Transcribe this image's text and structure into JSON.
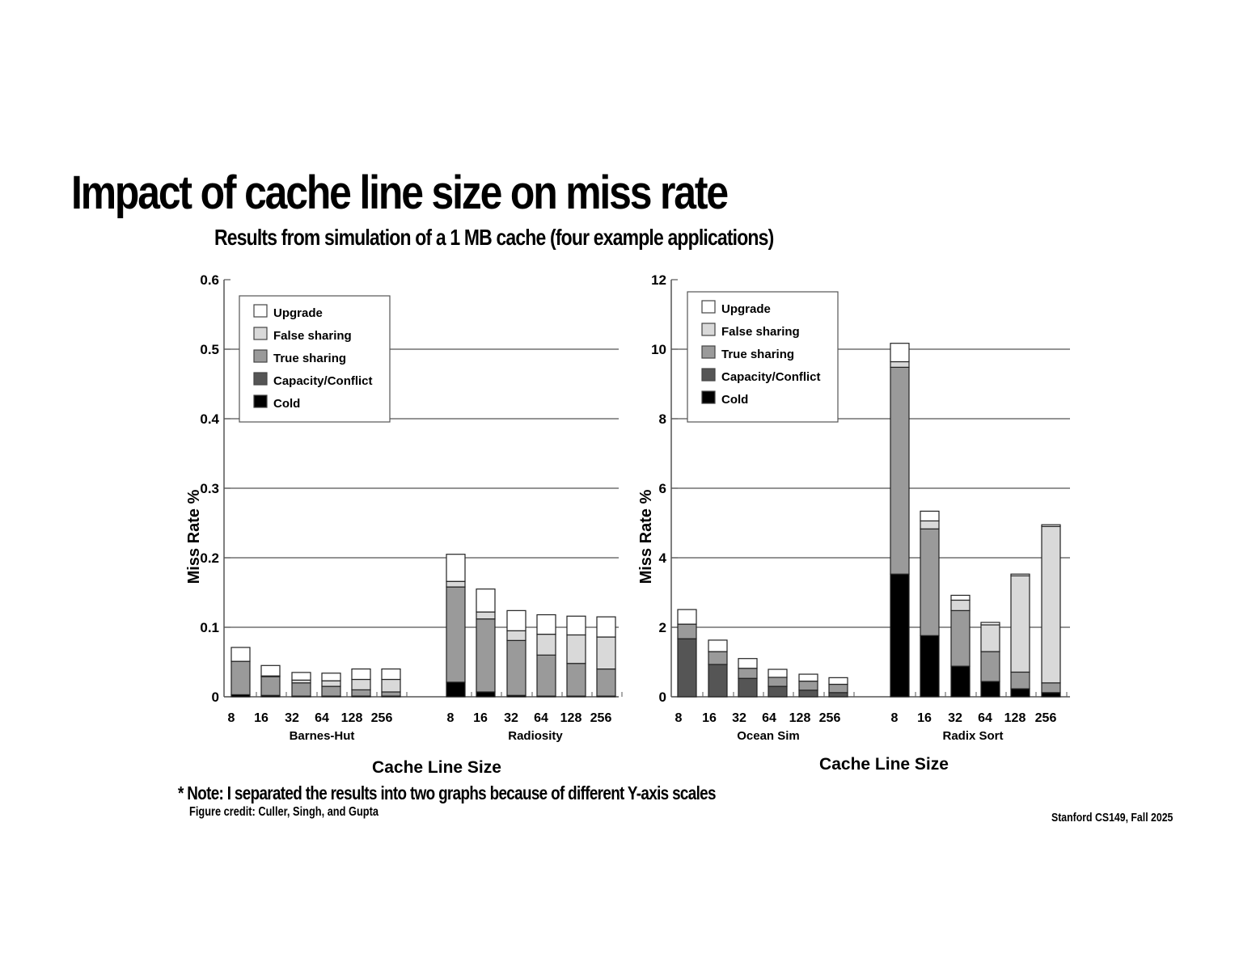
{
  "slide": {
    "title": "Impact of cache line size on miss rate",
    "subtitle": "Results from simulation of a 1 MB cache (four example applications)",
    "note": "* Note: I separated the results into two graphs because of different Y-axis scales",
    "credit": "Figure credit: Culler, Singh, and Gupta",
    "footer": "Stanford CS149, Fall 2025"
  },
  "legend": [
    {
      "label": "Upgrade",
      "color": "#ffffff"
    },
    {
      "label": "False sharing",
      "color": "#d9d9d9"
    },
    {
      "label": "True sharing",
      "color": "#9a9a9a"
    },
    {
      "label": "Capacity/Conflict",
      "color": "#555555"
    },
    {
      "label": "Cold",
      "color": "#000000"
    }
  ],
  "chart_data": [
    {
      "type": "bar",
      "stacked": true,
      "title": "",
      "xlabel": "Cache Line Size",
      "ylabel": "Miss Rate %",
      "ylim": [
        0,
        0.6
      ],
      "yticks": [
        "0",
        "0.1",
        "0.2",
        "0.3",
        "0.4",
        "0.5",
        "0.6"
      ],
      "grid": "horizontal",
      "legend_position": "upper-left",
      "groups": [
        "Barnes-Hut",
        "Radiosity"
      ],
      "categories": [
        "8",
        "16",
        "32",
        "64",
        "128",
        "256"
      ],
      "series_order": [
        "Cold",
        "Capacity/Conflict",
        "True sharing",
        "False sharing",
        "Upgrade"
      ],
      "data": {
        "Barnes-Hut": {
          "Cold": [
            0.003,
            0.002,
            0.001,
            0.001,
            0.001,
            0.001
          ],
          "Capacity/Conflict": [
            0.0,
            0.0,
            0.0,
            0.0,
            0.0,
            0.0
          ],
          "True sharing": [
            0.048,
            0.027,
            0.019,
            0.014,
            0.009,
            0.006
          ],
          "False sharing": [
            0.0,
            0.001,
            0.004,
            0.008,
            0.015,
            0.018
          ],
          "Upgrade": [
            0.02,
            0.015,
            0.011,
            0.011,
            0.015,
            0.015
          ]
        },
        "Radiosity": {
          "Cold": [
            0.021,
            0.007,
            0.002,
            0.001,
            0.001,
            0.001
          ],
          "Capacity/Conflict": [
            0.0,
            0.0,
            0.0,
            0.0,
            0.0,
            0.0
          ],
          "True sharing": [
            0.137,
            0.105,
            0.079,
            0.059,
            0.047,
            0.039
          ],
          "False sharing": [
            0.008,
            0.01,
            0.014,
            0.03,
            0.041,
            0.046
          ],
          "Upgrade": [
            0.039,
            0.033,
            0.029,
            0.028,
            0.027,
            0.029
          ]
        }
      }
    },
    {
      "type": "bar",
      "stacked": true,
      "title": "",
      "xlabel": "Cache Line Size",
      "ylabel": "Miss Rate %",
      "ylim": [
        0,
        12
      ],
      "yticks": [
        "0",
        "2",
        "4",
        "6",
        "8",
        "10",
        "12"
      ],
      "grid": "horizontal",
      "legend_position": "upper-left",
      "groups": [
        "Ocean Sim",
        "Radix Sort"
      ],
      "categories": [
        "8",
        "16",
        "32",
        "64",
        "128",
        "256"
      ],
      "series_order": [
        "Cold",
        "Capacity/Conflict",
        "True sharing",
        "False sharing",
        "Upgrade"
      ],
      "data": {
        "Ocean Sim": {
          "Cold": [
            0.0,
            0.0,
            0.0,
            0.0,
            0.0,
            0.0
          ],
          "Capacity/Conflict": [
            1.67,
            0.93,
            0.53,
            0.3,
            0.19,
            0.12
          ],
          "True sharing": [
            0.42,
            0.37,
            0.29,
            0.26,
            0.26,
            0.24
          ],
          "False sharing": [
            0.0,
            0.0,
            0.0,
            0.0,
            0.0,
            0.0
          ],
          "Upgrade": [
            0.42,
            0.33,
            0.28,
            0.23,
            0.2,
            0.19
          ]
        },
        "Radix Sort": {
          "Cold": [
            3.53,
            1.76,
            0.88,
            0.44,
            0.23,
            0.12
          ],
          "Capacity/Conflict": [
            0.0,
            0.0,
            0.0,
            0.0,
            0.0,
            0.0
          ],
          "True sharing": [
            5.95,
            3.07,
            1.6,
            0.86,
            0.48,
            0.28
          ],
          "False sharing": [
            0.16,
            0.23,
            0.3,
            0.77,
            2.77,
            4.5
          ],
          "Upgrade": [
            0.53,
            0.28,
            0.14,
            0.07,
            0.05,
            0.05
          ]
        }
      }
    }
  ]
}
